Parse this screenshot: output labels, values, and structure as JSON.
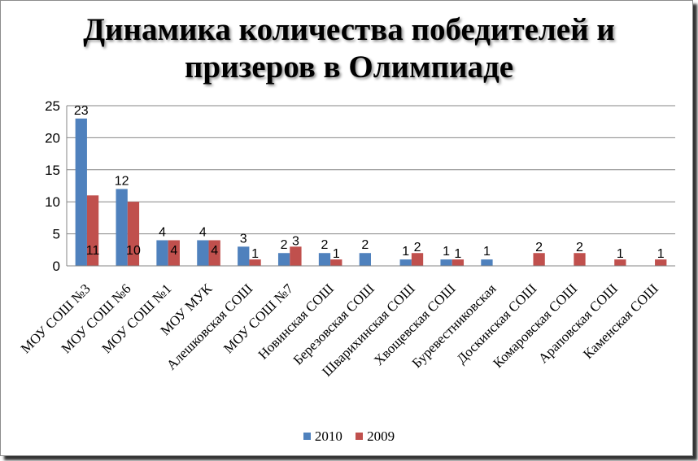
{
  "chart_data": {
    "type": "bar",
    "title_line1": "Динамика количества победителей и",
    "title_line2": "призеров в Олимпиаде",
    "categories": [
      "МОУ СОШ №3",
      "МОУ СОШ №6",
      "МОУ СОШ №1",
      "МОУ МУК",
      "Алешковская СОШ",
      "МОУ СОШ №7",
      "Новинская СОШ",
      "Березовская СОШ",
      "Шварихинская СОШ",
      "Хвощевская СОШ",
      "Буревестниковская",
      "Доскинская  СОШ",
      "Комаровская СОШ",
      "Араповская СОШ",
      "Каменская СОШ"
    ],
    "series": [
      {
        "name": "2010",
        "color": "#4f81bd",
        "values": [
          23,
          12,
          4,
          4,
          3,
          2,
          2,
          2,
          1,
          1,
          1,
          null,
          null,
          null,
          null
        ]
      },
      {
        "name": "2009",
        "color": "#c0504d",
        "values": [
          11,
          10,
          4,
          4,
          1,
          3,
          1,
          null,
          2,
          1,
          null,
          2,
          2,
          1,
          1
        ]
      }
    ],
    "ylim": [
      0,
      25
    ],
    "yticks": [
      "0",
      "5",
      "10",
      "15",
      "20",
      "25"
    ],
    "grid": true,
    "legend_position": "bottom"
  }
}
